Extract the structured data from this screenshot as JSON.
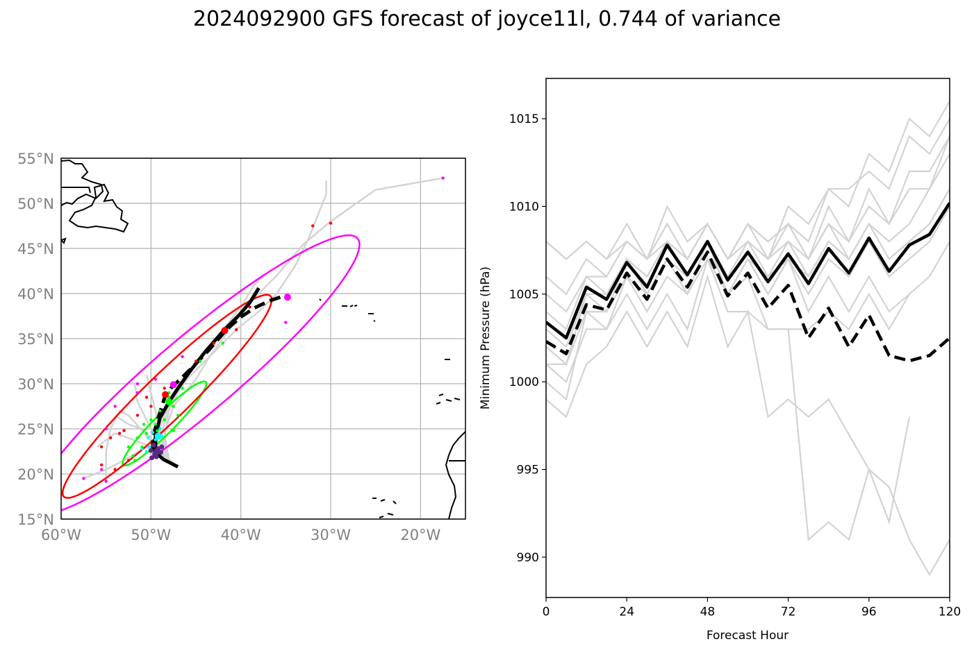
{
  "title": "2024092900 GFS forecast of joyce11l, 0.744 of variance",
  "colors": {
    "ensemble": "#d3d3d3",
    "mean": "#000000",
    "grid": "#b0b0b0",
    "coast": "#000000",
    "tick_text": "#808080",
    "day1": "#5b2a86",
    "day2": "#00ffff",
    "day3": "#00ff00",
    "day4": "#ff0000",
    "day5": "#ff00ff"
  },
  "map": {
    "lon_ticks": [
      "60°W",
      "50°W",
      "40°W",
      "30°W",
      "20°W"
    ],
    "lat_ticks": [
      "55°N",
      "50°N",
      "45°N",
      "40°N",
      "35°N",
      "30°N",
      "25°N",
      "20°N",
      "15°N"
    ]
  },
  "chart_data": [
    {
      "type": "scatter",
      "subtype": "track map",
      "xlim": [
        -60,
        -15
      ],
      "ylim": [
        15,
        55
      ],
      "grid": true,
      "tracks_mean": [
        {
          "style": "solid",
          "points": [
            [
              -47,
              20.8
            ],
            [
              -48.6,
              21.6
            ],
            [
              -49.5,
              22.4
            ],
            [
              -49.5,
              24.2
            ],
            [
              -49.0,
              26.2
            ],
            [
              -48.0,
              28.0
            ],
            [
              -47.0,
              29.5
            ],
            [
              -45.8,
              31.2
            ],
            [
              -44.0,
              33.5
            ],
            [
              -42.0,
              35.8
            ],
            [
              -40.2,
              37.6
            ],
            [
              -39.0,
              39.0
            ],
            [
              -38.0,
              40.6
            ]
          ]
        },
        {
          "style": "dashed",
          "points": [
            [
              -49.8,
              22.5
            ],
            [
              -49.8,
              24.0
            ],
            [
              -49.2,
              26.2
            ],
            [
              -48.5,
              28.4
            ],
            [
              -47.8,
              29.5
            ],
            [
              -45.6,
              31.6
            ],
            [
              -43.5,
              33.8
            ],
            [
              -41.6,
              36.0
            ],
            [
              -40.0,
              37.4
            ],
            [
              -38.5,
              38.4
            ],
            [
              -36.8,
              39.2
            ],
            [
              -35.0,
              39.8
            ]
          ]
        }
      ],
      "tracks_ensemble": [
        [
          [
            -47.5,
            21.2
          ],
          [
            -49.5,
            23.0
          ],
          [
            -51.0,
            24.8
          ],
          [
            -52.5,
            26.5
          ],
          [
            -53.5,
            27.0
          ],
          [
            -54.5,
            25.0
          ],
          [
            -55.0,
            22.5
          ],
          [
            -55.0,
            19.0
          ]
        ],
        [
          [
            -48.0,
            21.5
          ],
          [
            -50.0,
            23.0
          ],
          [
            -52.0,
            23.8
          ],
          [
            -54.0,
            24.5
          ],
          [
            -56.0,
            23.0
          ]
        ],
        [
          [
            -48.0,
            21.8
          ],
          [
            -49.5,
            24.0
          ],
          [
            -50.5,
            26.0
          ],
          [
            -51.5,
            28.0
          ],
          [
            -51.8,
            30.0
          ]
        ],
        [
          [
            -48.0,
            21.5
          ],
          [
            -48.5,
            24.0
          ],
          [
            -48.0,
            27.0
          ],
          [
            -46.5,
            30.0
          ],
          [
            -44.0,
            33.5
          ],
          [
            -42.0,
            36.0
          ],
          [
            -40.0,
            38.5
          ],
          [
            -38.5,
            41.0
          ],
          [
            -37.5,
            42.0
          ]
        ],
        [
          [
            -48.0,
            21.5
          ],
          [
            -48.8,
            24.5
          ],
          [
            -48.0,
            27.5
          ],
          [
            -46.0,
            30.5
          ],
          [
            -43.0,
            33.5
          ],
          [
            -40.5,
            36.0
          ],
          [
            -38.0,
            38.0
          ],
          [
            -36.0,
            40.0
          ],
          [
            -34.0,
            43.0
          ],
          [
            -32.5,
            46.0
          ],
          [
            -31.5,
            48.5
          ],
          [
            -30.5,
            51.0
          ],
          [
            -30.5,
            52.5
          ]
        ],
        [
          [
            -48.5,
            21.8
          ],
          [
            -49.0,
            25.0
          ],
          [
            -48.0,
            28.0
          ],
          [
            -46.0,
            31.0
          ],
          [
            -43.0,
            34.5
          ],
          [
            -40.0,
            38.0
          ],
          [
            -36.0,
            42.0
          ],
          [
            -33.0,
            45.5
          ],
          [
            -30.0,
            48.0
          ],
          [
            -25.0,
            51.5
          ],
          [
            -17.5,
            52.8
          ]
        ],
        [
          [
            -48.0,
            21.5
          ],
          [
            -48.5,
            24.5
          ],
          [
            -47.5,
            27.5
          ],
          [
            -45.0,
            30.5
          ],
          [
            -43.5,
            33.0
          ],
          [
            -42.0,
            35.0
          ],
          [
            -41.0,
            36.5
          ]
        ],
        [
          [
            -48.0,
            22.0
          ],
          [
            -49.0,
            24.5
          ],
          [
            -49.5,
            27.0
          ],
          [
            -50.0,
            29.0
          ],
          [
            -50.5,
            31.0
          ]
        ],
        [
          [
            -48.5,
            21.5
          ],
          [
            -50.5,
            23.0
          ],
          [
            -53.0,
            21.5
          ],
          [
            -55.0,
            20.5
          ],
          [
            -57.5,
            19.5
          ]
        ],
        [
          [
            -48.0,
            21.8
          ],
          [
            -49.5,
            23.5
          ],
          [
            -51.0,
            25.0
          ],
          [
            -52.5,
            25.5
          ],
          [
            -54.0,
            26.5
          ]
        ]
      ],
      "ellipses": [
        {
          "day": 3,
          "center": [
            -48.5,
            25.6
          ],
          "semi_major_deg": 6.5,
          "semi_minor_deg": 1.1,
          "angle_deg": 45
        },
        {
          "day": 4,
          "center": [
            -48.2,
            28.6
          ],
          "semi_major_deg": 16.0,
          "semi_minor_deg": 2.5,
          "angle_deg": 44
        },
        {
          "day": 5,
          "center": [
            -45.0,
            31.0
          ],
          "semi_major_deg": 23.5,
          "semi_minor_deg": 4.3,
          "angle_deg": 40
        }
      ],
      "mean_markers": [
        {
          "day": 1,
          "pos": [
            -49.3,
            22.5
          ]
        },
        {
          "day": 2,
          "pos": [
            -49.2,
            24.2
          ]
        },
        {
          "day": 3,
          "pos": [
            -48.0,
            28.0
          ]
        },
        {
          "day": 4,
          "pos": [
            -48.4,
            28.8
          ]
        },
        {
          "day": 4,
          "pos": [
            -41.8,
            35.9
          ]
        },
        {
          "day": 5,
          "pos": [
            -47.5,
            29.9
          ]
        },
        {
          "day": 5,
          "pos": [
            -34.8,
            39.6
          ]
        }
      ],
      "ensemble_markers": [
        {
          "day": 1,
          "points": [
            [
              -49.6,
              22.2
            ],
            [
              -49.2,
              22.8
            ],
            [
              -49.9,
              21.8
            ],
            [
              -48.9,
              22.4
            ],
            [
              -50.0,
              22.6
            ],
            [
              -49.4,
              21.9
            ],
            [
              -48.8,
              23.0
            ],
            [
              -49.7,
              23.2
            ]
          ]
        },
        {
          "day": 2,
          "points": [
            [
              -50.2,
              23.0
            ],
            [
              -49.5,
              23.8
            ],
            [
              -48.8,
              24.2
            ],
            [
              -50.5,
              22.5
            ],
            [
              -49.0,
              25.0
            ],
            [
              -51.0,
              22.8
            ],
            [
              -50.3,
              24.0
            ],
            [
              -49.8,
              24.6
            ]
          ]
        },
        {
          "day": 3,
          "points": [
            [
              -51.8,
              21.5
            ],
            [
              -51.0,
              23.0
            ],
            [
              -52.5,
              23.0
            ],
            [
              -50.5,
              24.5
            ],
            [
              -49.5,
              25.5
            ],
            [
              -51.5,
              24.0
            ],
            [
              -50.0,
              26.0
            ],
            [
              -49.0,
              27.0
            ],
            [
              -48.0,
              28.5
            ],
            [
              -47.5,
              27.5
            ],
            [
              -47.0,
              26.5
            ],
            [
              -50.8,
              25.5
            ],
            [
              -52.0,
              22.0
            ],
            [
              -49.3,
              24.8
            ],
            [
              -48.5,
              26.0
            ],
            [
              -48.0,
              29.0
            ],
            [
              -46.5,
              29.5
            ],
            [
              -47.5,
              24.8
            ],
            [
              -44.5,
              32.5
            ],
            [
              -42.0,
              34.5
            ]
          ]
        },
        {
          "day": 4,
          "points": [
            [
              -55.5,
              23.0
            ],
            [
              -54.5,
              24.0
            ],
            [
              -53.5,
              24.5
            ],
            [
              -55.5,
              21.0
            ],
            [
              -54.0,
              20.5
            ],
            [
              -52.5,
              21.5
            ],
            [
              -51.5,
              26.5
            ],
            [
              -50.5,
              28.5
            ],
            [
              -48.5,
              29.5
            ],
            [
              -45.0,
              32.5
            ],
            [
              -43.0,
              34.5
            ],
            [
              -40.5,
              36.0
            ],
            [
              -39.0,
              38.5
            ],
            [
              -32.0,
              47.5
            ],
            [
              -30.0,
              47.8
            ],
            [
              -53.0,
              24.8
            ],
            [
              -50.0,
              27.5
            ]
          ]
        },
        {
          "day": 5,
          "points": [
            [
              -57.5,
              19.5
            ],
            [
              -55.5,
              20.5
            ],
            [
              -55.0,
              19.2
            ],
            [
              -55.0,
              25.0
            ],
            [
              -54.0,
              27.5
            ],
            [
              -51.5,
              30.0
            ],
            [
              -51.5,
              29.0
            ],
            [
              -49.5,
              30.5
            ],
            [
              -46.5,
              33.0
            ],
            [
              -35.0,
              36.8
            ],
            [
              -17.5,
              52.8
            ]
          ]
        }
      ]
    },
    {
      "type": "line",
      "xlabel": "Forecast Hour",
      "ylabel": "Minimum Pressure (hPa)",
      "xlim": [
        0,
        120
      ],
      "ylim": [
        987.7,
        1017.3
      ],
      "xticks": [
        0,
        24,
        48,
        72,
        96,
        120
      ],
      "yticks": [
        990,
        995,
        1000,
        1005,
        1010,
        1015
      ],
      "x": [
        0,
        6,
        12,
        18,
        24,
        30,
        36,
        42,
        48,
        54,
        60,
        66,
        72,
        78,
        84,
        90,
        96,
        102,
        108,
        114,
        120
      ],
      "series_mean_solid": [
        1003.4,
        1002.5,
        1005.4,
        1004.7,
        1006.8,
        1005.4,
        1007.8,
        1006.1,
        1008.0,
        1005.8,
        1007.4,
        1005.7,
        1007.3,
        1005.6,
        1007.6,
        1006.2,
        1008.2,
        1006.3,
        1007.8,
        1008.4,
        1010.2
      ],
      "series_mean_dashed": [
        1002.3,
        1001.6,
        1004.4,
        1004.1,
        1006.2,
        1004.7,
        1007.0,
        1005.4,
        1007.4,
        1004.9,
        1006.2,
        1004.2,
        1005.5,
        1002.5,
        1004.2,
        1002.0,
        1003.8,
        1001.5,
        1001.2,
        1001.5,
        1002.5
      ],
      "series_ensemble": [
        [
          1001,
          1001,
          1004,
          1004,
          1006,
          1005,
          1007,
          1006,
          1008,
          1005,
          1007,
          1006,
          1007,
          1006,
          1008,
          1007,
          1009,
          1008,
          1009,
          1011,
          1013
        ],
        [
          1004,
          1003,
          1006,
          1005,
          1007,
          1006,
          1008,
          1007,
          1009,
          1007,
          1008,
          1007,
          1008,
          1007,
          1010,
          1008,
          1011,
          1009,
          1011,
          1011,
          1014
        ],
        [
          1005,
          1004,
          1006,
          1006,
          1008,
          1007,
          1009,
          1007,
          1009,
          1007,
          1009,
          1008,
          1009,
          1008,
          1011,
          1010,
          1013,
          1012,
          1015,
          1014,
          1016
        ],
        [
          1006,
          1005,
          1007,
          1006,
          1008,
          1007,
          1010,
          1008,
          1009,
          1007,
          1008,
          1007,
          1010,
          1009,
          1011,
          1011,
          1012,
          1011,
          1014,
          1013,
          1015
        ],
        [
          1008,
          1007,
          1008,
          1007,
          1009,
          1007,
          1009,
          1007,
          1009,
          1007,
          1009,
          1008,
          1009,
          1007,
          1009,
          1008,
          1010,
          1009,
          1012,
          1012,
          1014
        ],
        [
          1003,
          1002,
          1005,
          1005,
          1007,
          1006,
          1008,
          1006,
          1008,
          1006,
          1008,
          1006,
          1008,
          1006,
          1008,
          1007,
          1009,
          1007,
          1008,
          1009,
          1011
        ],
        [
          1002,
          1001,
          1005,
          1004,
          1007,
          1005,
          1007,
          1006,
          1008,
          1005,
          1007,
          1005,
          1007,
          1005,
          1007,
          1006,
          1008,
          1006,
          1007,
          1008,
          1010
        ],
        [
          1001,
          1000,
          1003,
          1003,
          1005,
          1003,
          1005,
          1003,
          1007,
          1005,
          1006,
          1003,
          1003,
          1003,
          1004,
          1003,
          1005,
          1003,
          1005
        ],
        [
          1000,
          999,
          1004,
          1003,
          1006,
          1004,
          1006,
          1005,
          1007,
          1004,
          1004,
          1003,
          1003,
          991,
          992,
          991,
          995,
          994,
          991,
          989,
          991
        ],
        [
          999,
          998,
          1001,
          1002,
          1004,
          1002,
          1004,
          1002,
          1006,
          1002,
          1004,
          998,
          999,
          998,
          999,
          997,
          995,
          992,
          998
        ],
        [
          1008,
          1007,
          1008,
          1007,
          1008,
          1007,
          1008,
          1007,
          1009,
          1007,
          1009,
          1007,
          1009,
          1007,
          1009,
          1007,
          1009,
          1007,
          1008,
          1009,
          1011
        ],
        [
          1002,
          1001,
          1004,
          1004,
          1007,
          1005,
          1007,
          1005,
          1008,
          1005,
          1007,
          1005,
          1007,
          1004,
          1006,
          1004,
          1006,
          1004,
          1005,
          1006,
          1008
        ]
      ]
    }
  ]
}
